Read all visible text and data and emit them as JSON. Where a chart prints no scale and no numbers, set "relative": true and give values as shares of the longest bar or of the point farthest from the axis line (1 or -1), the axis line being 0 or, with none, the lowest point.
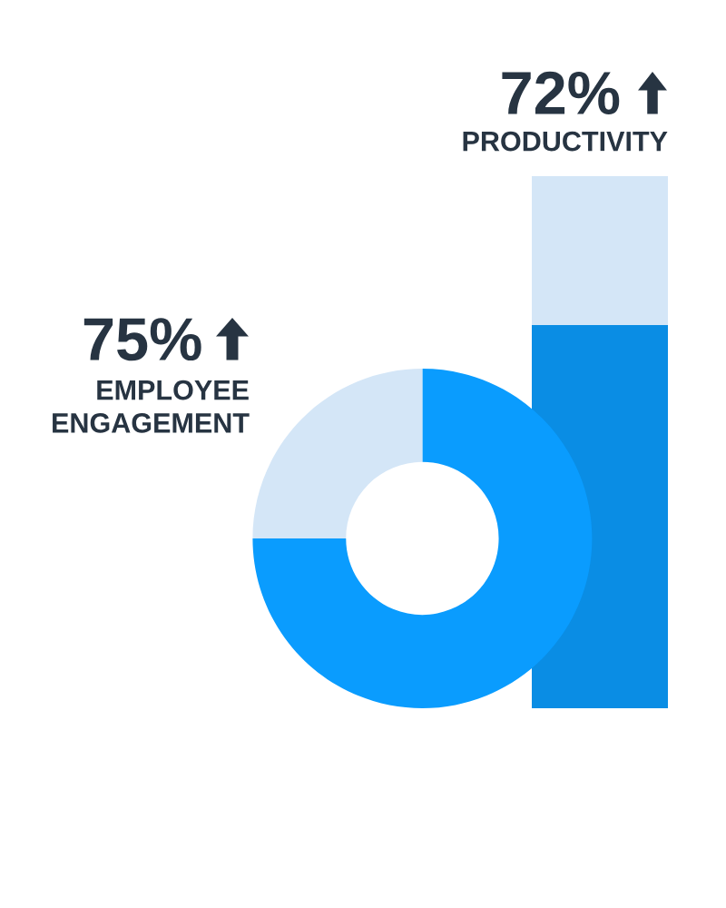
{
  "chart_data": [
    {
      "type": "donut",
      "title": "75%",
      "subtitle": "EMPLOYEE ENGAGEMENT",
      "categories": [
        null,
        null
      ],
      "values": [
        75,
        25
      ],
      "colors": [
        "#0a9cfe",
        "#d4e6f7"
      ]
    },
    {
      "type": "bar",
      "relative": true,
      "title": "72%",
      "subtitle": "PRODUCTIVITY",
      "stacked": true,
      "categories": [
        null
      ],
      "series": [
        {
          "color": "#0a8de4",
          "values": [
            0.72
          ]
        },
        {
          "color": "#d4e6f7",
          "values": [
            0.28
          ]
        }
      ]
    }
  ]
}
